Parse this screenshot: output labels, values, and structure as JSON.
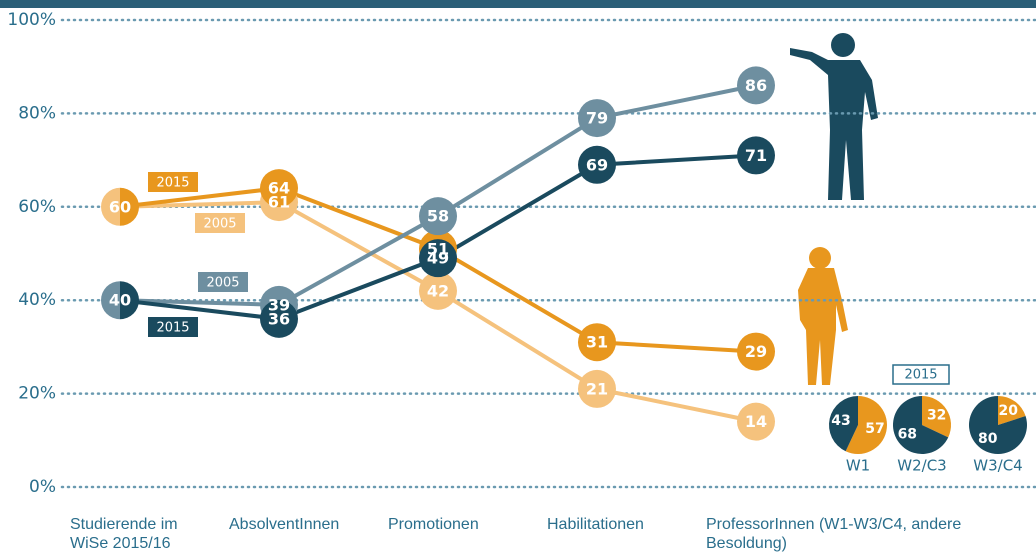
{
  "chart_data": [
    {
      "type": "line",
      "categories": [
        "Studierende im WiSe 2015/16",
        "AbsolventInnen",
        "Promotionen",
        "Habilitationen",
        "ProfessorInnen (W1-W3/C4, andere Besoldung)"
      ],
      "series": [
        {
          "name": "2005",
          "color": "#f5c27d",
          "values": [
            60,
            61,
            42,
            21,
            14
          ]
        },
        {
          "name": "2015",
          "color": "#e8971e",
          "values": [
            60,
            64,
            51,
            31,
            29
          ]
        },
        {
          "name": "2005",
          "color": "#6e8fa0",
          "values": [
            40,
            39,
            58,
            79,
            86
          ]
        },
        {
          "name": "2015",
          "color": "#1a4a5e",
          "values": [
            40,
            36,
            49,
            69,
            71
          ]
        }
      ],
      "ylim": [
        0,
        100
      ],
      "yticks": [
        {
          "value": 0,
          "label": "0%"
        },
        {
          "value": 20,
          "label": "20%"
        },
        {
          "value": 40,
          "label": "40%"
        },
        {
          "value": 60,
          "label": "60%"
        },
        {
          "value": 80,
          "label": "80%"
        },
        {
          "value": 100,
          "label": "100%"
        }
      ],
      "grid": true
    },
    {
      "type": "pie",
      "title": "2015",
      "categories": [
        "W1",
        "W2/C3",
        "W3/C4"
      ],
      "series": [
        {
          "color": "#1a4a5e",
          "values": [
            43,
            68,
            80
          ]
        },
        {
          "color": "#e8971e",
          "values": [
            57,
            32,
            20
          ]
        }
      ]
    }
  ]
}
